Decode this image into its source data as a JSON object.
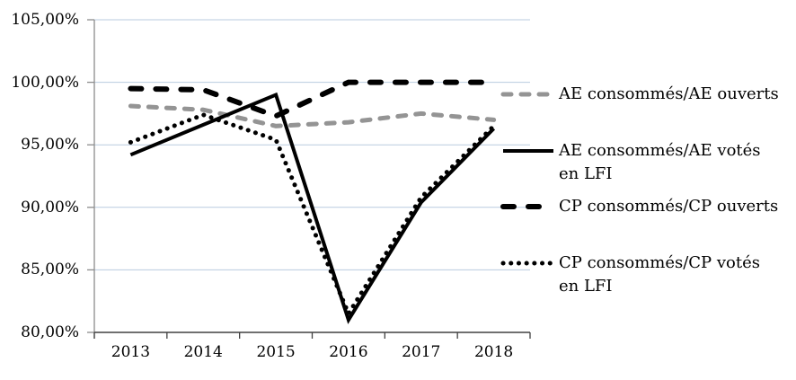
{
  "chart_data": {
    "type": "line",
    "title": "",
    "categories": [
      "2013",
      "2014",
      "2015",
      "2016",
      "2017",
      "2018"
    ],
    "x_axis": {
      "labels": [
        "2013",
        "2014",
        "2015",
        "2016",
        "2017",
        "2018"
      ]
    },
    "y_axis": {
      "min": 80,
      "max": 105,
      "step": 5,
      "tick_values": [
        80,
        85,
        90,
        95,
        100,
        105
      ],
      "tick_labels": [
        "80,00%",
        "85,00%",
        "90,00%",
        "95,00%",
        "100,00%",
        "105,00%"
      ],
      "unit": "percent"
    },
    "grid": true,
    "legend_position": "right",
    "series": [
      {
        "name": "AE consommés/AE ouverts",
        "legend_lines": [
          "AE consommés/AE ouverts",
          ""
        ],
        "values": [
          98.1,
          97.8,
          96.5,
          96.8,
          97.5,
          97.0
        ],
        "color": "#949494",
        "line_style": "dash",
        "line_width": 5
      },
      {
        "name": "AE consommés/AE votés en LFI",
        "legend_lines": [
          "AE consommés/AE votés",
          "en LFI"
        ],
        "values": [
          94.2,
          96.6,
          99.0,
          81.0,
          90.4,
          96.3
        ],
        "color": "#000000",
        "line_style": "solid",
        "line_width": 4
      },
      {
        "name": "CP consommés/CP ouverts",
        "legend_lines": [
          "CP consommés/CP ouverts",
          ""
        ],
        "values": [
          99.5,
          99.4,
          97.3,
          100.0,
          100.0,
          100.0
        ],
        "color": "#000000",
        "line_style": "long-dash",
        "line_width": 6
      },
      {
        "name": "CP consommés/CP votés en LFI",
        "legend_lines": [
          "CP consommés/CP votés",
          "en LFI"
        ],
        "values": [
          95.2,
          97.4,
          95.4,
          81.5,
          90.8,
          96.5
        ],
        "color": "#000000",
        "line_style": "dot",
        "line_width": 5
      }
    ],
    "colors": {
      "gridline": "#b9cbdf",
      "y_axis_line": "#8c8c8c",
      "x_axis_line": "#404040",
      "background": "#ffffff"
    }
  }
}
